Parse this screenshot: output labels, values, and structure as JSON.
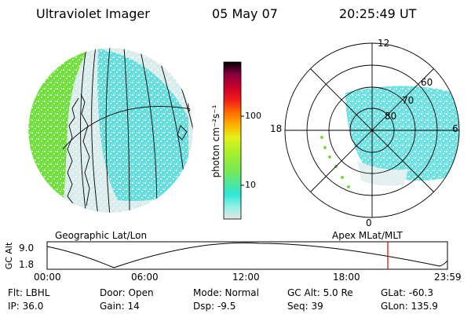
{
  "header": {
    "title": "Ultraviolet Imager",
    "date": "05 May 07",
    "time": "20:25:49 UT"
  },
  "colorbar": {
    "unit_label": "photon cm⁻²s⁻¹",
    "tick_100": "100",
    "tick_10": "10",
    "colors": [
      "#e6e6e6",
      "#8ff0e6",
      "#2ee6d6",
      "#74e85a",
      "#a6f02a",
      "#e6f01a",
      "#ffb000",
      "#ff6a00",
      "#f01a1a",
      "#c8002a",
      "#8a0040",
      "#000000"
    ]
  },
  "geo_panel": {
    "label": "Geographic Lat/Lon",
    "colors": {
      "dayside": "#6fe03a",
      "aurora": "#3ed8d8",
      "background": "#d8ecec"
    }
  },
  "polar_panel": {
    "label": "Apex MLat/MLT",
    "mlt_labels": {
      "top": "12",
      "left": "18",
      "right": "6",
      "bottom": "0"
    },
    "mlat_labels": [
      "60",
      "70",
      "80"
    ]
  },
  "orbit_plot": {
    "ylabel": "GC Alt",
    "ymax": "9.0",
    "ymin": "1.8",
    "x_ticks": [
      "00:00",
      "06:00",
      "12:00",
      "18:00",
      "23:59"
    ],
    "current_time_color": "#e00000"
  },
  "info": {
    "flt": "Flt: LBHL",
    "ip": "IP: 36.0",
    "door": "Door: Open",
    "gain": "Gain: 14",
    "mode": "Mode: Normal",
    "dsp": "Dsp:   -9.5",
    "gc_alt": "GC Alt: 5.0 Re",
    "seq": "Seq: 39",
    "glat": "GLat: -60.3",
    "glon": "GLon: 135.9"
  }
}
